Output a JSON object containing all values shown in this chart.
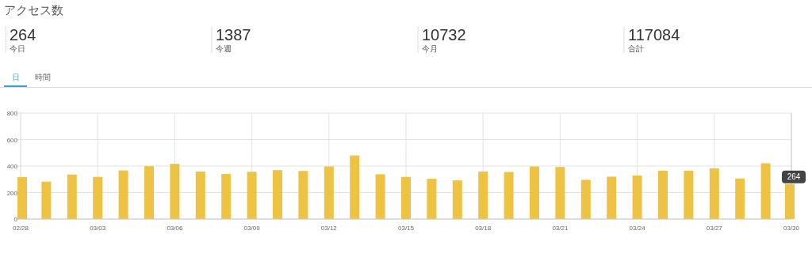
{
  "chart_data": [
    {
      "type": "other",
      "title": "アクセス数",
      "annotations": [
        "264",
        "今日",
        "1387",
        "今週",
        "10732",
        "今月",
        "117084",
        "合計",
        "日",
        "時間"
      ]
    },
    {
      "type": "bar",
      "categories": [
        "02/28",
        null,
        null,
        "03/03",
        null,
        null,
        "03/06",
        null,
        null,
        "03/09",
        null,
        null,
        "03/12",
        null,
        null,
        "03/15",
        null,
        null,
        "03/18",
        null,
        null,
        "03/21",
        null,
        null,
        "03/24",
        null,
        null,
        "03/27",
        null,
        null,
        "03/30"
      ],
      "values": [
        316,
        282,
        336,
        318,
        367,
        399,
        417,
        359,
        340,
        357,
        369,
        363,
        397,
        480,
        338,
        318,
        304,
        292,
        359,
        355,
        397,
        393,
        296,
        320,
        328,
        365,
        365,
        383,
        306,
        421,
        264
      ],
      "color": "#eec242",
      "ylim": [
        0,
        800
      ],
      "yticks": [
        0,
        200,
        400,
        600,
        800
      ],
      "grid": true,
      "annotations": [
        {
          "text": "264",
          "x": "03/30",
          "y": 264
        }
      ]
    }
  ]
}
